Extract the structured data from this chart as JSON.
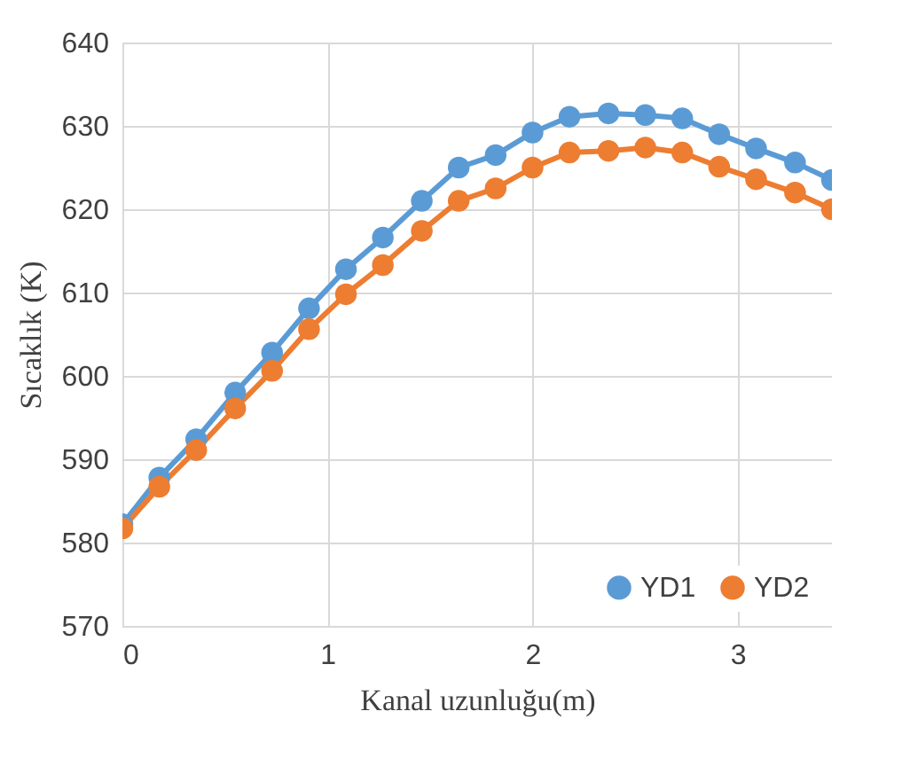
{
  "chart_data": {
    "type": "line",
    "xlabel": "Kanal uzunluğu(m)",
    "ylabel": "Sıcaklık (K)",
    "x": [
      0,
      0.18,
      0.36,
      0.55,
      0.73,
      0.91,
      1.09,
      1.27,
      1.46,
      1.64,
      1.82,
      2.0,
      2.18,
      2.37,
      2.55,
      2.73,
      2.91,
      3.09,
      3.28,
      3.46
    ],
    "series": [
      {
        "name": "YD1",
        "color": "#5b9bd5",
        "values": [
          582.2,
          587.8,
          592.4,
          598.0,
          602.8,
          608.1,
          612.8,
          616.6,
          621.0,
          625.0,
          626.5,
          629.2,
          631.1,
          631.5,
          631.3,
          630.9,
          629.0,
          627.3,
          625.6,
          623.5
        ]
      },
      {
        "name": "YD2",
        "color": "#ed7d31",
        "values": [
          581.7,
          586.7,
          591.1,
          596.1,
          600.6,
          605.6,
          609.8,
          613.3,
          617.4,
          621.0,
          622.5,
          625.0,
          626.8,
          627.0,
          627.4,
          626.8,
          625.1,
          623.6,
          622.0,
          620.0
        ]
      }
    ],
    "xlim": [
      0,
      3.46
    ],
    "xticks": [
      0,
      1,
      2,
      3
    ],
    "ylim": [
      570,
      640
    ],
    "yticks": [
      570,
      580,
      590,
      600,
      610,
      620,
      630,
      640
    ],
    "grid": true,
    "legend": "bottom right",
    "marker": "circle",
    "line_style": "solid"
  }
}
